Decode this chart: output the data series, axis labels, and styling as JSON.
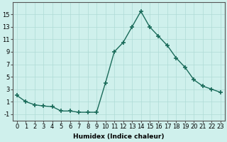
{
  "x": [
    0,
    1,
    2,
    3,
    4,
    5,
    6,
    7,
    8,
    9,
    10,
    11,
    12,
    13,
    14,
    15,
    16,
    17,
    18,
    19,
    20,
    21,
    22,
    23
  ],
  "y": [
    2,
    1,
    0.5,
    0.3,
    0.2,
    -0.5,
    -0.5,
    -0.7,
    -0.7,
    -0.7,
    4,
    9,
    10.5,
    13,
    15.5,
    13,
    11.5,
    10,
    8,
    6.5,
    4.5,
    3.5,
    3,
    2.5
  ],
  "line_color": "#1a6b5a",
  "marker": "+",
  "marker_size": 4,
  "bg_color": "#cff0ec",
  "grid_color": "#aedbd6",
  "xlabel": "Humidex (Indice chaleur)",
  "xlim": [
    -0.5,
    23.5
  ],
  "ylim": [
    -2,
    17
  ],
  "yticks": [
    -1,
    1,
    3,
    5,
    7,
    9,
    11,
    13,
    15
  ],
  "xtick_labels": [
    "0",
    "1",
    "2",
    "3",
    "4",
    "5",
    "6",
    "7",
    "8",
    "9",
    "10",
    "11",
    "12",
    "13",
    "14",
    "15",
    "16",
    "17",
    "18",
    "19",
    "20",
    "21",
    "22",
    "23"
  ],
  "xlabel_fontsize": 6.5,
  "tick_fontsize": 6,
  "line_width": 1.0,
  "marker_thickness": 1.2
}
